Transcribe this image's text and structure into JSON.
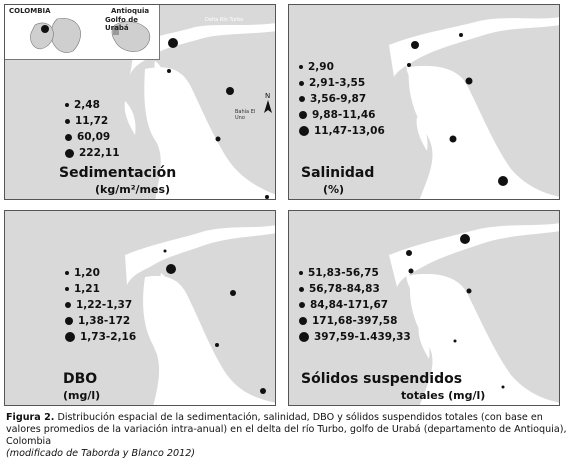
{
  "inset": {
    "country": "COLOMBIA",
    "department": "Antioquia",
    "gulf": "Golfo de Urabá",
    "river_label": "Delta Río Turbo",
    "bay_label": "Bahía El Uno",
    "north_label": "N"
  },
  "panels": {
    "sedimentacion": {
      "title": "Sedimentación",
      "unit": "(kg/m²/mes)",
      "legend": [
        "2,48",
        "11,72",
        "60,09",
        "222,11"
      ]
    },
    "salinidad": {
      "title": "Salinidad",
      "unit": "(%)",
      "legend": [
        "2,90",
        "2,91-3,55",
        "3,56-9,87",
        "9,88-11,46",
        "11,47-13,06"
      ]
    },
    "dbo": {
      "title": "DBO",
      "unit": "(mg/l)",
      "legend": [
        "1,20",
        "1,21",
        "1,22-1,37",
        "1,38-172",
        "1,73-2,16"
      ]
    },
    "solidos": {
      "title": "Sólidos suspendidos",
      "unit": "totales (mg/l)",
      "legend": [
        "51,83-56,75",
        "56,78-84,83",
        "84,84-171,67",
        "171,68-397,58",
        "397,59-1.439,33"
      ]
    }
  },
  "caption": {
    "label": "Figura 2.",
    "text": "Distribución espacial de la sedimentación, salinidad, DBO y sólidos suspendidos totales (con base en valores promedios de la variación intra-anual) en el delta del río Turbo, golfo de Urabá (departamento de Antioquia), Colombia",
    "source": "(modificado de Taborda y Blanco 2012)"
  },
  "colors": {
    "land": "#d9d9d9",
    "water": "#ffffff",
    "dots": "#111111"
  }
}
